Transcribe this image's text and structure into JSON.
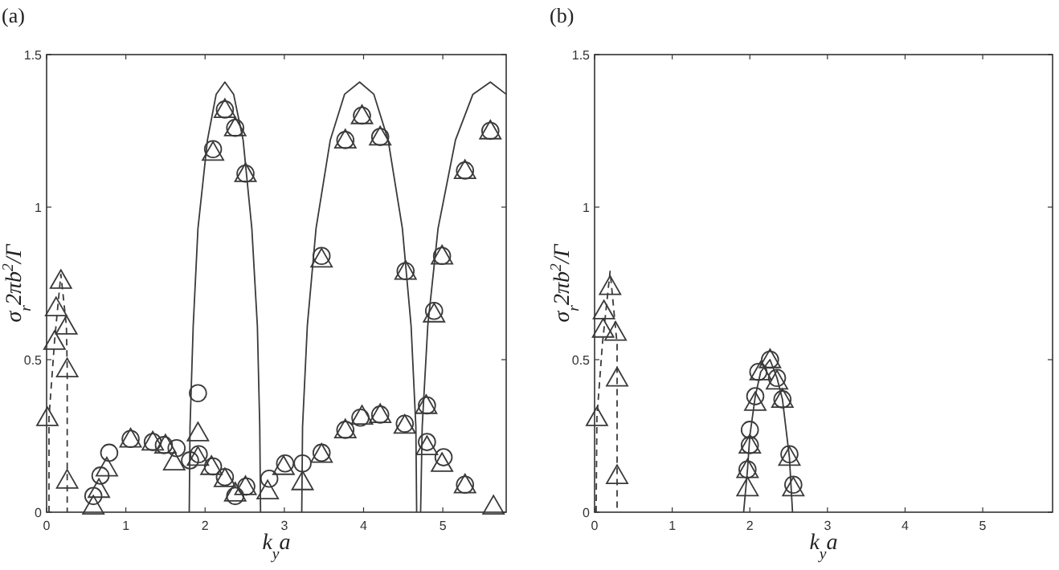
{
  "chart_data": [
    {
      "type": "scatter",
      "title": "(a)",
      "xlabel": "k$_{y}$a",
      "ylabel": "σ$_{r}$2πb$^{2}$/Γ",
      "xlim": [
        0,
        5.8
      ],
      "ylim": [
        0,
        1.5
      ],
      "xticks": [
        0,
        1,
        2,
        3,
        4,
        5
      ],
      "yticks": [
        0,
        0.5,
        1,
        1.5
      ],
      "grid": false,
      "series": [
        {
          "type": "line",
          "color": "#3a3a3a",
          "line_style": "solid",
          "x": [
            1.8,
            1.81,
            1.85,
            1.91,
            2.03,
            2.14,
            2.25,
            2.36,
            2.48,
            2.59,
            2.66,
            2.69,
            2.7,
            null,
            3.22,
            3.23,
            3.29,
            3.4,
            3.58,
            3.76,
            3.95,
            4.13,
            4.31,
            4.49,
            4.6,
            4.66,
            4.67,
            null,
            4.72,
            4.74,
            4.81,
            4.94,
            5.16,
            5.38,
            5.6,
            5.8
          ],
          "values": [
            0,
            0.28,
            0.61,
            0.93,
            1.22,
            1.37,
            1.41,
            1.37,
            1.22,
            0.93,
            0.61,
            0.28,
            0,
            null,
            0,
            0.28,
            0.61,
            0.93,
            1.22,
            1.37,
            1.41,
            1.37,
            1.22,
            0.93,
            0.61,
            0.28,
            0,
            null,
            0,
            0.28,
            0.61,
            0.93,
            1.22,
            1.37,
            1.41,
            1.37
          ]
        },
        {
          "type": "line",
          "color": "#3a3a3a",
          "line_style": "dashed",
          "x": [
            0.03,
            0.03,
            0.1,
            0.18,
            0.25,
            0.26,
            0.26
          ],
          "values": [
            0,
            0.31,
            0.56,
            0.78,
            0.61,
            0.47,
            0
          ]
        },
        {
          "color": "#3a3a3a",
          "marker": "circle",
          "x": [
            0.59,
            0.68,
            0.79,
            1.06,
            1.34,
            1.48,
            1.64,
            1.81,
            1.91,
            1.92,
            2.1,
            2.25,
            2.38,
            2.52,
            2.81,
            3.01,
            3.23,
            3.47,
            3.77,
            3.96,
            4.21,
            4.52,
            4.8,
            4.8,
            5.01,
            5.28,
            2.1,
            2.25,
            2.38,
            2.51,
            3.47,
            3.77,
            3.98,
            4.21,
            4.53,
            4.89,
            4.99,
            5.28,
            5.6
          ],
          "values": [
            0.053,
            0.12,
            0.195,
            0.24,
            0.23,
            0.22,
            0.21,
            0.17,
            0.39,
            0.19,
            0.15,
            0.115,
            0.053,
            0.084,
            0.11,
            0.16,
            0.16,
            0.195,
            0.27,
            0.31,
            0.32,
            0.29,
            0.35,
            0.23,
            0.18,
            0.09,
            1.19,
            1.32,
            1.26,
            1.11,
            0.84,
            1.22,
            1.3,
            1.23,
            0.79,
            0.66,
            0.84,
            1.12,
            1.25
          ]
        },
        {
          "color": "#3a3a3a",
          "marker": "triangle",
          "x": [
            0.01,
            0.1,
            0.12,
            0.18,
            0.25,
            0.26,
            0.26,
            0.59,
            0.66,
            0.76,
            1.06,
            1.34,
            1.5,
            1.61,
            1.91,
            1.91,
            2.08,
            2.25,
            2.38,
            2.51,
            2.79,
            2.99,
            3.23,
            3.47,
            3.77,
            3.98,
            4.21,
            4.52,
            4.79,
            4.8,
            4.99,
            5.28,
            5.64,
            2.1,
            2.25,
            2.38,
            2.51,
            3.47,
            3.77,
            3.98,
            4.21,
            4.53,
            4.89,
            4.99,
            5.28,
            5.6
          ],
          "values": [
            0.31,
            0.56,
            0.67,
            0.76,
            0.61,
            0.47,
            0.105,
            0.02,
            0.075,
            0.145,
            0.24,
            0.23,
            0.22,
            0.165,
            0.26,
            0.18,
            0.15,
            0.11,
            0.063,
            0.084,
            0.07,
            0.15,
            0.1,
            0.19,
            0.27,
            0.315,
            0.32,
            0.285,
            0.35,
            0.215,
            0.16,
            0.09,
            0.02,
            1.18,
            1.32,
            1.26,
            1.11,
            0.83,
            1.22,
            1.3,
            1.23,
            0.79,
            0.65,
            0.84,
            1.12,
            1.25
          ]
        }
      ]
    },
    {
      "type": "scatter",
      "title": "(b)",
      "xlabel": "k$_{y}$a",
      "ylabel": "σ$_{r}$2πb$^{2}$/Γ",
      "xlim": [
        0,
        5.9
      ],
      "ylim": [
        0,
        1.5
      ],
      "xticks": [
        0,
        1,
        2,
        3,
        4,
        5
      ],
      "yticks": [
        0,
        0.5,
        1,
        1.5
      ],
      "grid": false,
      "series": [
        {
          "type": "line",
          "color": "#3a3a3a",
          "line_style": "solid",
          "x": [
            1.92,
            1.97,
            2.0,
            2.07,
            2.14,
            2.26,
            2.35,
            2.42,
            2.51,
            2.55
          ],
          "values": [
            0,
            0.14,
            0.25,
            0.38,
            0.46,
            0.5,
            0.44,
            0.37,
            0.18,
            0
          ]
        },
        {
          "type": "line",
          "color": "#3a3a3a",
          "line_style": "dashed",
          "x": [
            0.02,
            0.03,
            0.1,
            0.2,
            0.29,
            0.29
          ],
          "values": [
            0,
            0.31,
            0.55,
            0.79,
            0.55,
            0
          ]
        },
        {
          "color": "#3a3a3a",
          "marker": "circle",
          "x": [
            1.97,
            2.0,
            2.0,
            2.07,
            2.11,
            2.26,
            2.35,
            2.42,
            2.51,
            2.56
          ],
          "values": [
            0.14,
            0.22,
            0.27,
            0.38,
            0.46,
            0.5,
            0.44,
            0.37,
            0.19,
            0.09
          ]
        },
        {
          "color": "#3a3a3a",
          "marker": "triangle",
          "x": [
            0.03,
            0.11,
            0.12,
            0.2,
            0.27,
            0.29,
            0.29,
            1.97,
            1.97,
            2.0,
            2.07,
            2.14,
            2.26,
            2.35,
            2.42,
            2.51,
            2.56
          ],
          "values": [
            0.31,
            0.6,
            0.66,
            0.74,
            0.59,
            0.44,
            0.12,
            0.08,
            0.14,
            0.22,
            0.36,
            0.46,
            0.5,
            0.43,
            0.37,
            0.18,
            0.08
          ]
        }
      ]
    }
  ]
}
